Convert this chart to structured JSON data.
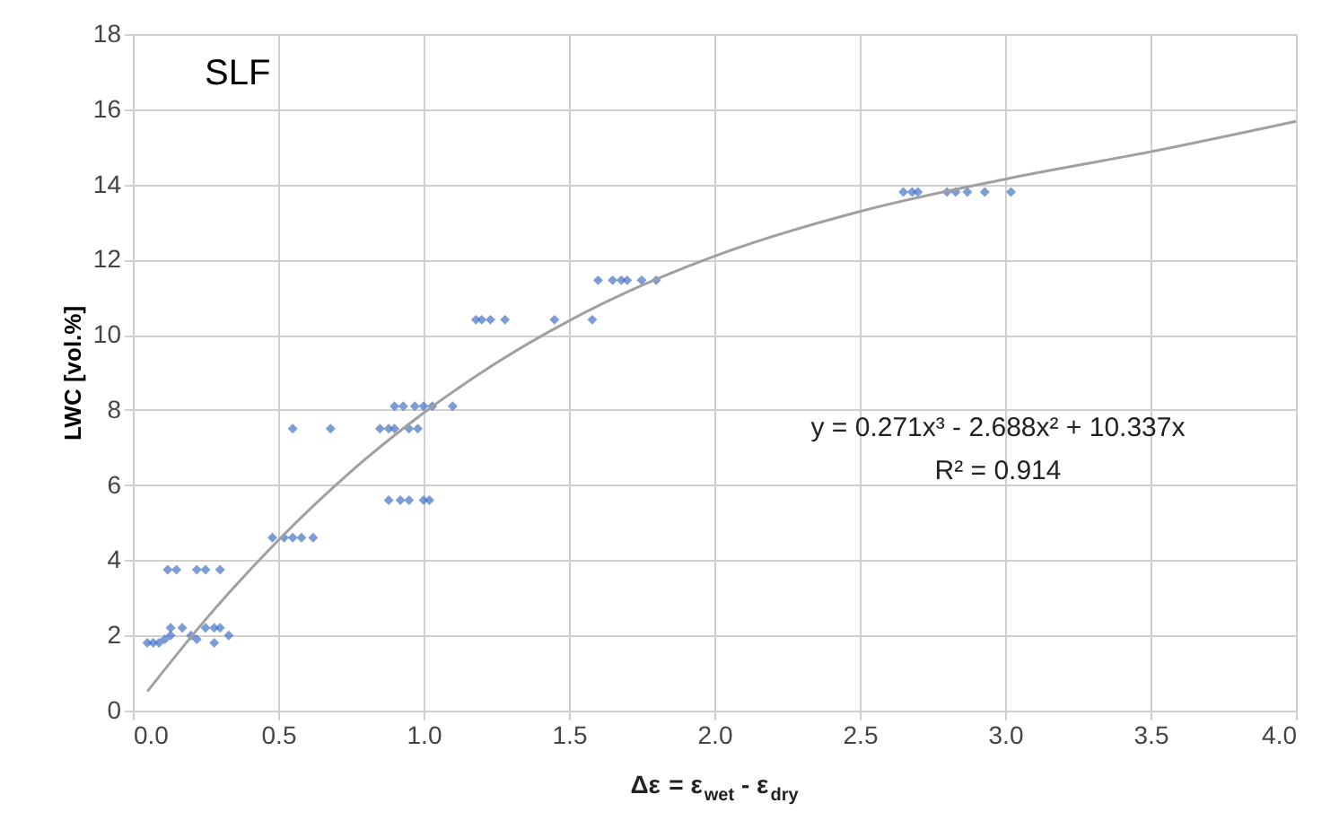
{
  "chart_data": {
    "type": "scatter",
    "xlabel": "Δε = ε$_{wet}$ - ε$_{dry}$",
    "ylabel": "LWC [vol.%]",
    "annotations": [
      "SLF",
      "y = 0.271x³ - 2.688x² + 10.337x",
      "R² = 0.914"
    ],
    "series": [
      {
        "color": "#4472c4",
        "marker": "diamond",
        "x": [
          0.05,
          0.07,
          0.09,
          0.11,
          0.13,
          0.2,
          0.22,
          0.13,
          0.17,
          0.25,
          0.28,
          0.3,
          0.28,
          0.33,
          0.12,
          0.15,
          0.22,
          0.25,
          0.3,
          0.48,
          0.52,
          0.55,
          0.58,
          0.62,
          0.88,
          0.92,
          0.95,
          1.0,
          1.02,
          0.55,
          0.68,
          0.85,
          0.88,
          0.9,
          0.95,
          0.98,
          0.9,
          0.93,
          0.97,
          1.0,
          1.03,
          1.1,
          1.18,
          1.2,
          1.23,
          1.28,
          1.45,
          1.58,
          1.6,
          1.65,
          1.68,
          1.7,
          1.75,
          1.8,
          2.65,
          2.68,
          2.7,
          2.8,
          2.83,
          2.87,
          2.93,
          3.02
        ],
        "values": [
          1.8,
          1.8,
          1.8,
          1.9,
          2.0,
          2.0,
          1.9,
          2.2,
          2.2,
          2.2,
          2.2,
          2.2,
          1.8,
          2.0,
          3.75,
          3.75,
          3.75,
          3.75,
          3.75,
          4.6,
          4.6,
          4.6,
          4.6,
          4.6,
          5.6,
          5.6,
          5.6,
          5.6,
          5.6,
          7.5,
          7.5,
          7.5,
          7.5,
          7.5,
          7.5,
          7.5,
          8.1,
          8.1,
          8.1,
          8.1,
          8.1,
          8.1,
          10.4,
          10.4,
          10.4,
          10.4,
          10.4,
          10.4,
          11.45,
          11.45,
          11.45,
          11.45,
          11.45,
          11.45,
          13.8,
          13.8,
          13.8,
          13.8,
          13.8,
          13.8,
          13.8,
          13.8
        ]
      },
      {
        "type": "line",
        "color": "#a0a0a0",
        "marker": "none",
        "line_style": "solid",
        "x": [
          0.05,
          0.25,
          0.5,
          0.75,
          1.0,
          1.25,
          1.5,
          1.75,
          2.0,
          2.5,
          3.0,
          3.5,
          4.0
        ],
        "values": [
          0.51,
          2.42,
          4.53,
          6.36,
          7.92,
          9.25,
          10.37,
          11.31,
          12.09,
          13.28,
          14.14,
          14.87,
          15.68
        ]
      }
    ],
    "xlim": [
      0,
      4
    ],
    "ylim": [
      0,
      18
    ],
    "xticks": [
      {
        "value": 0,
        "label": "0.0"
      },
      {
        "value": 0.5,
        "label": "0.5"
      },
      {
        "value": 1,
        "label": "1.0"
      },
      {
        "value": 1.5,
        "label": "1.5"
      },
      {
        "value": 2,
        "label": "2.0"
      },
      {
        "value": 2.5,
        "label": "2.5"
      },
      {
        "value": 3,
        "label": "3.0"
      },
      {
        "value": 3.5,
        "label": "3.5"
      },
      {
        "value": 4,
        "label": "4.0"
      }
    ],
    "yticks": [
      0,
      2,
      4,
      6,
      8,
      10,
      12,
      14,
      16,
      18
    ],
    "grid": true,
    "legend": false
  }
}
